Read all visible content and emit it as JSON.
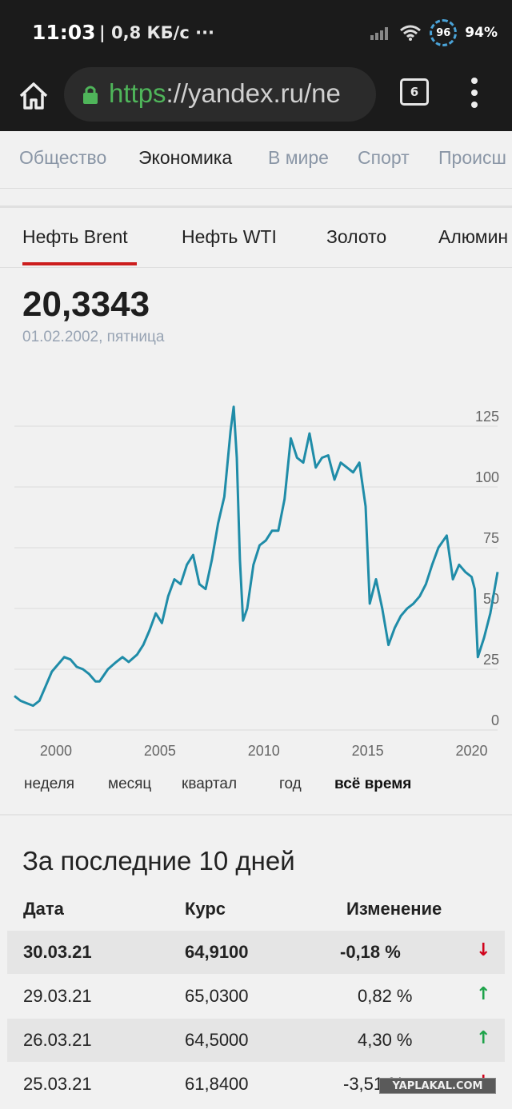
{
  "status_bar": {
    "time": "11:03",
    "speed": "| 0,8 КБ/с ···",
    "badge": "96",
    "battery": "94%"
  },
  "browser": {
    "url_scheme": "https",
    "url_rest": "://yandex.ru/ne",
    "tab_count": "6"
  },
  "categories": [
    {
      "label": "Общество",
      "active": false
    },
    {
      "label": "Экономика",
      "active": true
    },
    {
      "label": "В мире",
      "active": false
    },
    {
      "label": "Спорт",
      "active": false
    },
    {
      "label": "Происш",
      "active": false
    }
  ],
  "commodities": [
    {
      "label": "Нефть Brent",
      "active": true
    },
    {
      "label": "Нефть WTI",
      "active": false
    },
    {
      "label": "Золото",
      "active": false
    },
    {
      "label": "Алюмин",
      "active": false
    }
  ],
  "price": {
    "value": "20,3343",
    "date": "01.02.2002, пятница"
  },
  "chart_data": {
    "type": "line",
    "title": "",
    "xlabel": "",
    "ylabel": "",
    "x_ticks": [
      "2000",
      "2005",
      "2010",
      "2015",
      "2020"
    ],
    "y_ticks": [
      "0",
      "25",
      "50",
      "75",
      "100",
      "125"
    ],
    "ylim": [
      0,
      140
    ],
    "xlim": [
      1998.0,
      2021.25
    ],
    "grid": true,
    "color": "#1f8ca8",
    "series": [
      {
        "x": [
          1998.0,
          1998.3,
          1998.6,
          1998.9,
          1999.2,
          1999.5,
          1999.8,
          2000.1,
          2000.4,
          2000.7,
          2001.0,
          2001.3,
          2001.6,
          2001.9,
          2002.1,
          2002.5,
          2002.9,
          2003.2,
          2003.5,
          2003.9,
          2004.2,
          2004.5,
          2004.8,
          2005.1,
          2005.4,
          2005.7,
          2006.0,
          2006.3,
          2006.6,
          2006.9,
          2007.2,
          2007.5,
          2007.8,
          2008.1,
          2008.4,
          2008.55,
          2008.7,
          2008.85,
          2009.0,
          2009.2,
          2009.5,
          2009.8,
          2010.1,
          2010.4,
          2010.7,
          2011.0,
          2011.3,
          2011.6,
          2011.9,
          2012.2,
          2012.5,
          2012.8,
          2013.1,
          2013.4,
          2013.7,
          2014.0,
          2014.3,
          2014.6,
          2014.9,
          2015.1,
          2015.4,
          2015.7,
          2016.0,
          2016.3,
          2016.6,
          2016.9,
          2017.2,
          2017.5,
          2017.8,
          2018.1,
          2018.4,
          2018.8,
          2019.1,
          2019.4,
          2019.7,
          2020.0,
          2020.15,
          2020.3,
          2020.6,
          2020.9,
          2021.25
        ],
        "y": [
          14,
          12,
          11,
          10,
          12,
          18,
          24,
          27,
          30,
          29,
          26,
          25,
          23,
          20,
          20,
          25,
          28,
          30,
          28,
          31,
          35,
          41,
          48,
          44,
          55,
          62,
          60,
          68,
          72,
          60,
          58,
          70,
          85,
          96,
          123,
          133,
          112,
          70,
          45,
          50,
          68,
          76,
          78,
          82,
          82,
          95,
          120,
          112,
          110,
          122,
          108,
          112,
          113,
          103,
          110,
          108,
          106,
          110,
          92,
          52,
          62,
          50,
          35,
          42,
          47,
          50,
          52,
          55,
          60,
          68,
          75,
          80,
          62,
          68,
          65,
          63,
          58,
          30,
          38,
          48,
          65
        ]
      }
    ]
  },
  "periods": [
    {
      "label": "неделя",
      "active": false
    },
    {
      "label": "месяц",
      "active": false
    },
    {
      "label": "квартал",
      "active": false
    },
    {
      "label": "год",
      "active": false
    },
    {
      "label": "всё время",
      "active": true
    }
  ],
  "table": {
    "heading": "За последние 10 дней",
    "headers": {
      "date": "Дата",
      "rate": "Курс",
      "change": "Изменение"
    },
    "rows": [
      {
        "date": "30.03.21",
        "rate": "64,9100",
        "change": "-0,18 %",
        "arrow": "↓",
        "arrow_color": "#d0021b"
      },
      {
        "date": "29.03.21",
        "rate": "65,0300",
        "change": "0,82 %",
        "arrow": "↑",
        "arrow_color": "#1ea34a"
      },
      {
        "date": "26.03.21",
        "rate": "64,5000",
        "change": "4,30 %",
        "arrow": "↑",
        "arrow_color": "#1ea34a"
      },
      {
        "date": "25.03.21",
        "rate": "61,8400",
        "change": "-3,51 %",
        "arrow": "↓",
        "arrow_color": "#d0021b"
      }
    ]
  },
  "watermark": "YAPLAKAL.COM"
}
